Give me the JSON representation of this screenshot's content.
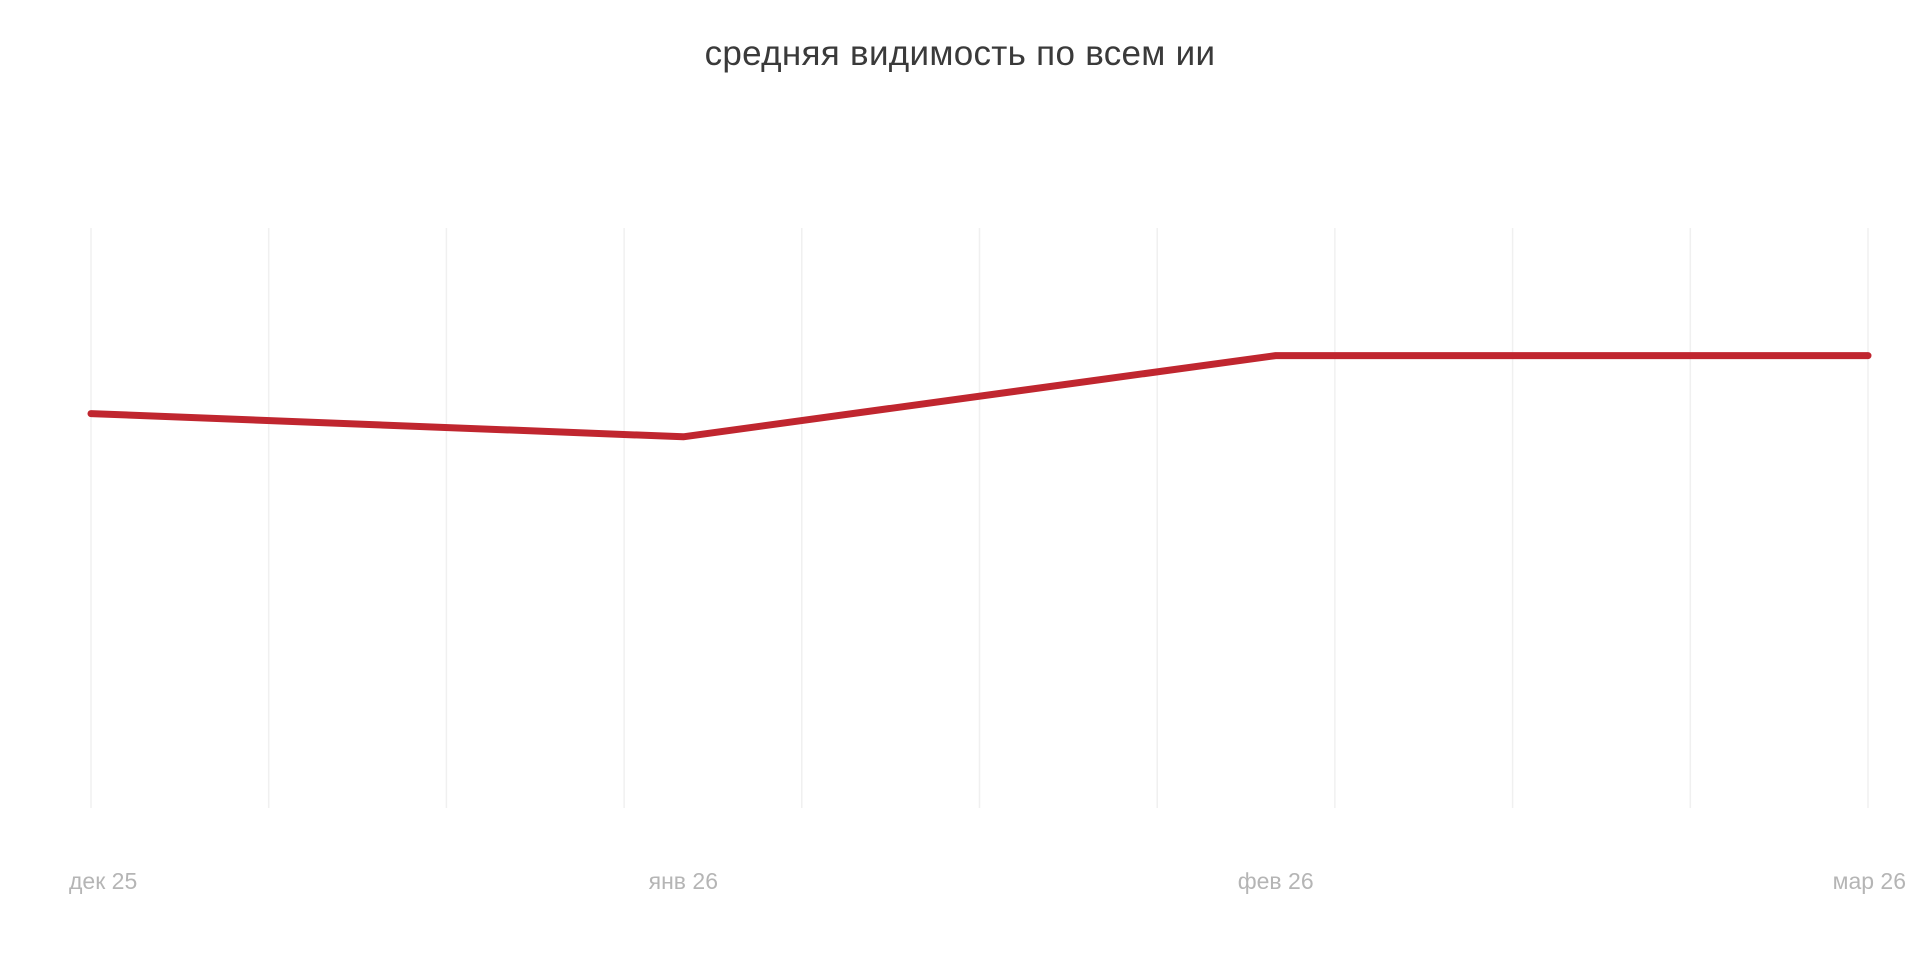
{
  "chart_data": {
    "type": "line",
    "title": "средняя видимость по всем ии",
    "xlabel": "",
    "ylabel": "",
    "x_ticks": [
      "дек 25",
      "янв 26",
      "фев 26",
      "мар 26"
    ],
    "x": [
      0,
      1,
      2,
      3
    ],
    "series": [
      {
        "values": [
          0.52,
          0.46,
          0.67,
          0.67
        ],
        "color": "#c0262f"
      }
    ],
    "ylim": [
      -0.5,
      1.0
    ],
    "grid_vertical": true,
    "grid_horizontal": false,
    "legend": "none"
  }
}
